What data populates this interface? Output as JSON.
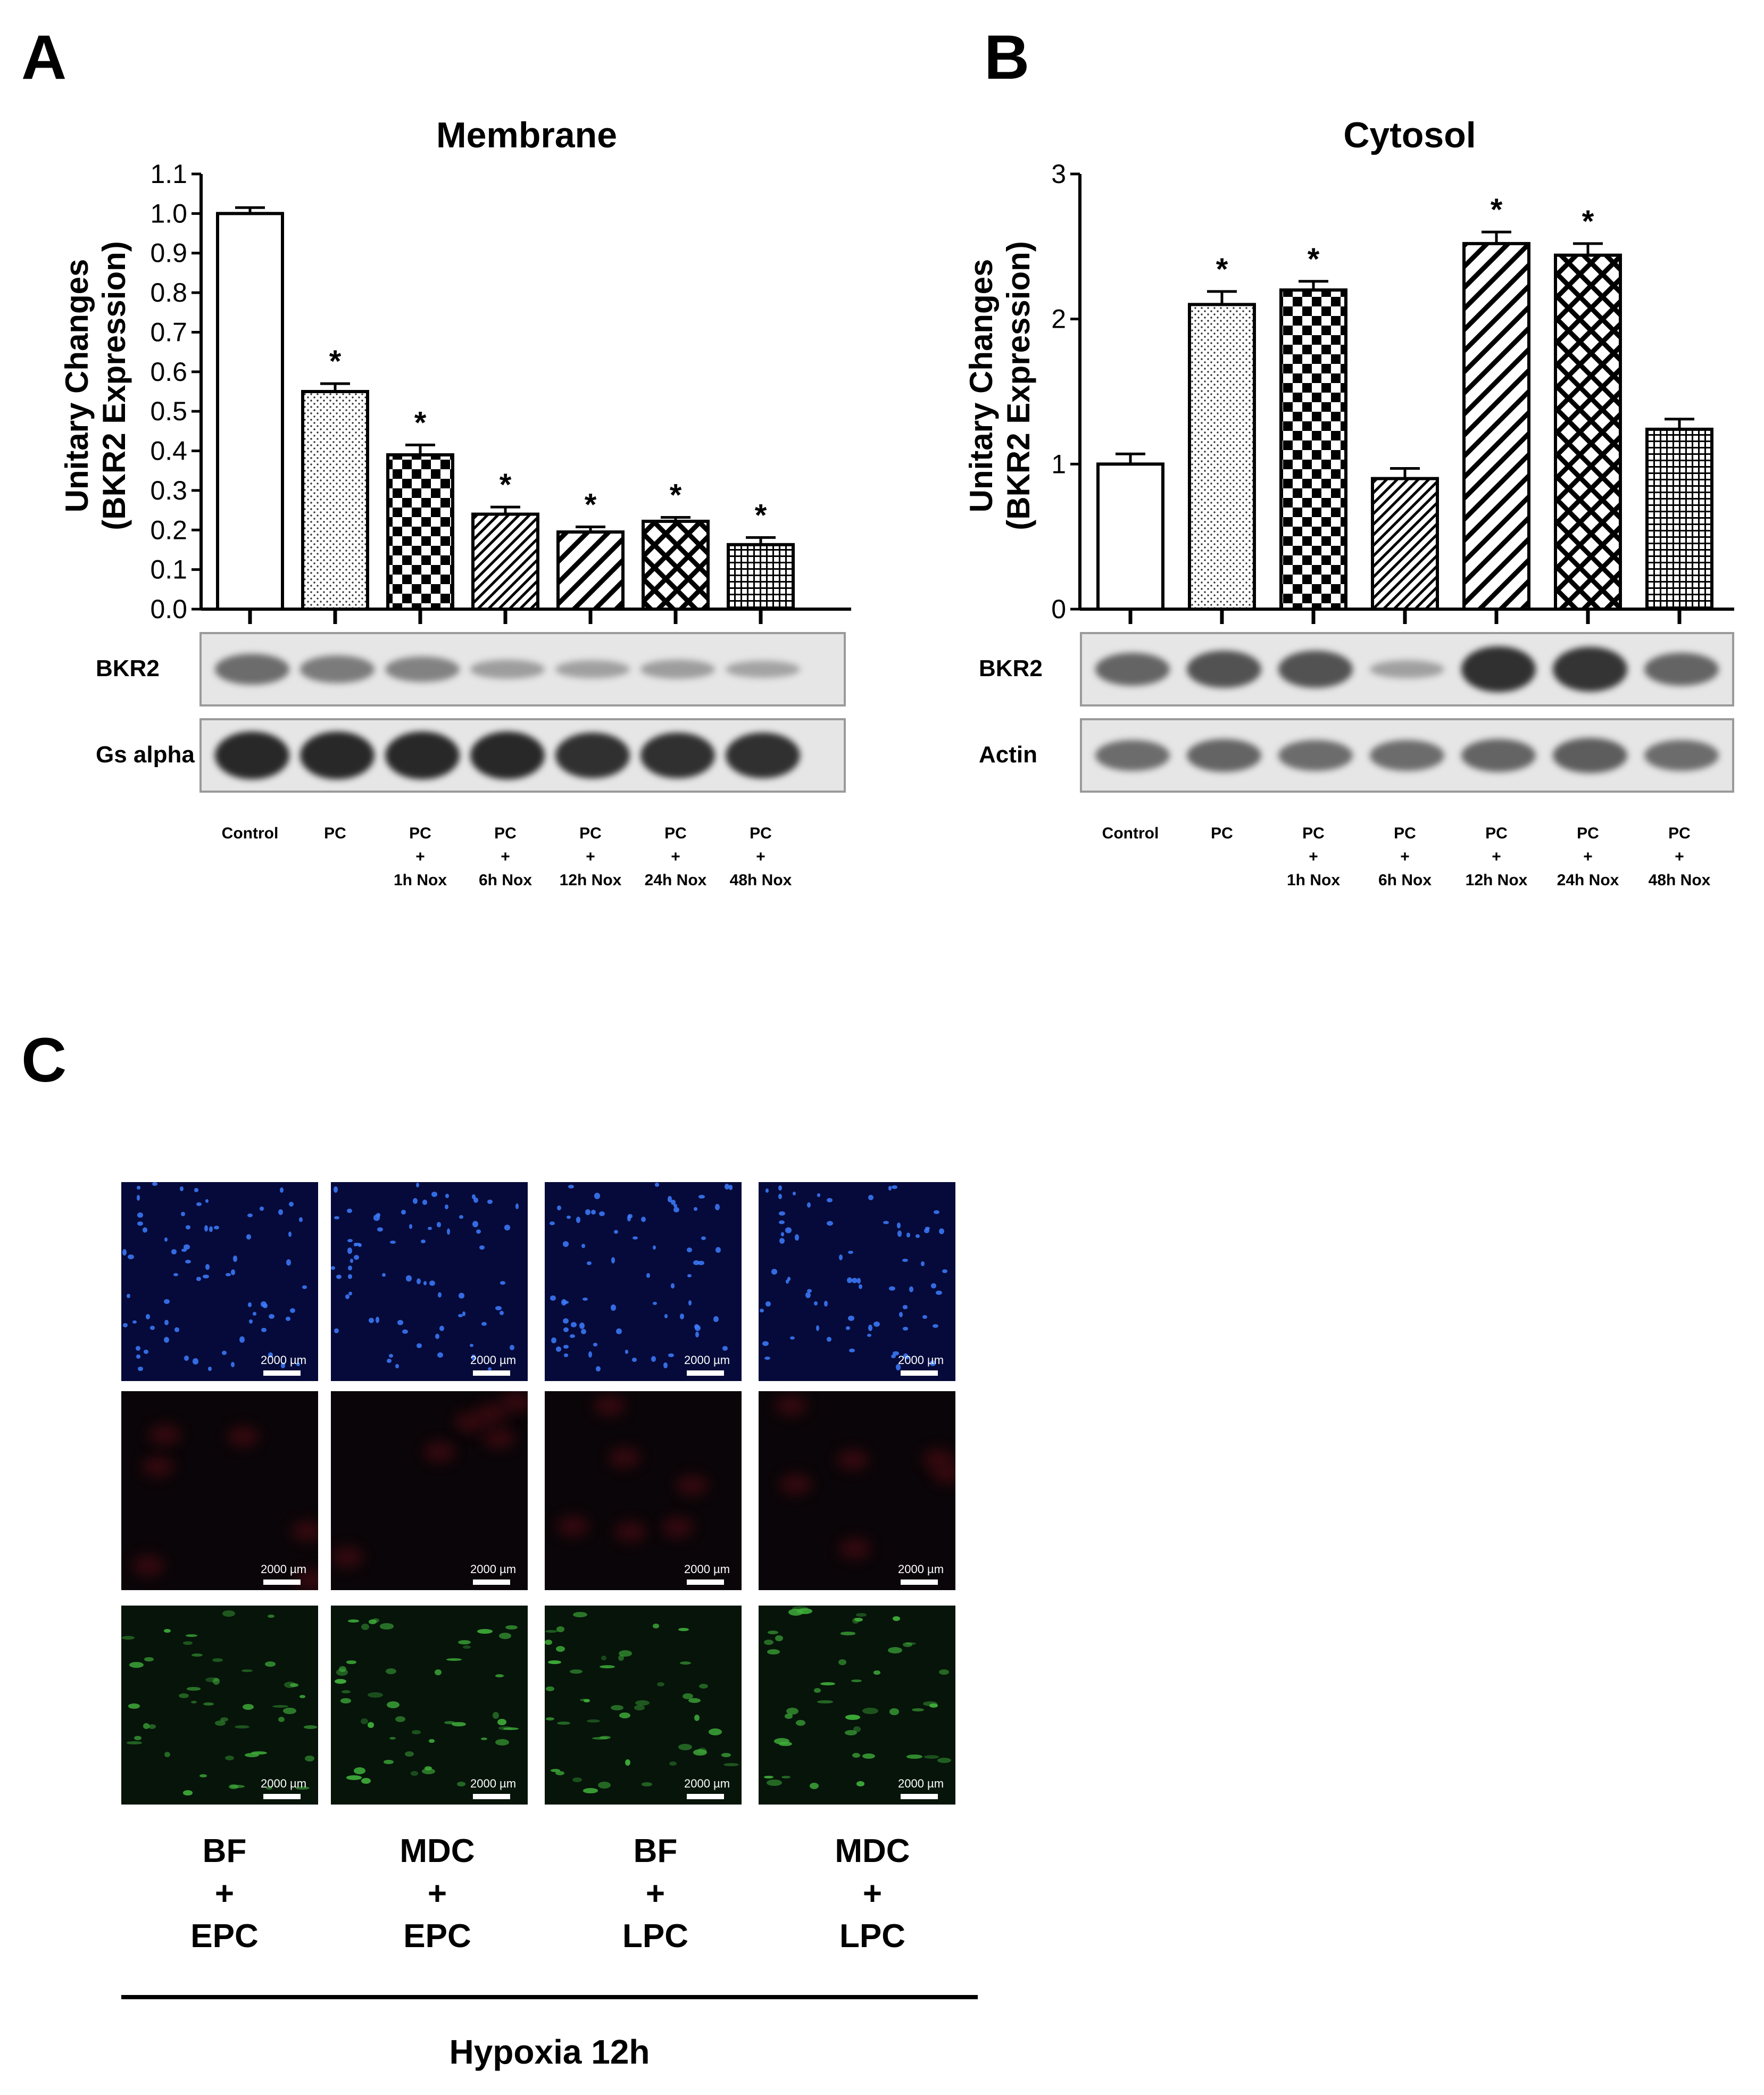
{
  "panels": {
    "a": "A",
    "b": "B",
    "c": "C"
  },
  "chart_data": [
    {
      "type": "bar",
      "title": "Membrane",
      "ylabel_line1": "Unitary Changes",
      "ylabel_line2": "(BKR2 Expression)",
      "ylim": [
        0,
        1.1
      ],
      "yticks": [
        "0.0",
        "0.1",
        "0.2",
        "0.3",
        "0.4",
        "0.5",
        "0.6",
        "0.7",
        "0.8",
        "0.9",
        "1.0",
        "1.1"
      ],
      "categories": [
        "Control",
        "PC",
        "PC + 1h Nox",
        "PC + 6h Nox",
        "PC + 12h Nox",
        "PC + 24h Nox",
        "PC + 48h Nox"
      ],
      "values": [
        1.0,
        0.55,
        0.39,
        0.24,
        0.195,
        0.222,
        0.163
      ],
      "errors": [
        0.015,
        0.02,
        0.025,
        0.018,
        0.013,
        0.01,
        0.018
      ],
      "significance": [
        "",
        "*",
        "*",
        "*",
        "*",
        "*",
        "*"
      ],
      "patterns": [
        "white",
        "dots",
        "checker",
        "diag-fine",
        "diag-wide",
        "crosshatch",
        "grid"
      ],
      "blots": [
        {
          "label": "BKR2",
          "intensity": [
            0.55,
            0.45,
            0.4,
            0.22,
            0.2,
            0.22,
            0.18
          ]
        },
        {
          "label": "Gs alpha",
          "intensity": [
            1,
            1,
            1,
            1,
            0.95,
            0.95,
            0.95
          ]
        }
      ],
      "conditions": [
        [
          "Control"
        ],
        [
          "PC"
        ],
        [
          "PC",
          "+",
          "1h Nox"
        ],
        [
          "PC",
          "+",
          "6h Nox"
        ],
        [
          "PC",
          "+",
          "12h Nox"
        ],
        [
          "PC",
          "+",
          "24h Nox"
        ],
        [
          "PC",
          "+",
          "48h Nox"
        ]
      ]
    },
    {
      "type": "bar",
      "title": "Cytosol",
      "ylabel_line1": "Unitary Changes",
      "ylabel_line2": "(BKR2 Expression)",
      "ylim": [
        0,
        3
      ],
      "yticks": [
        "0",
        "1",
        "2",
        "3"
      ],
      "categories": [
        "Control",
        "PC",
        "PC + 1h Nox",
        "PC + 6h Nox",
        "PC + 12h Nox",
        "PC + 24h Nox",
        "PC + 48h Nox"
      ],
      "values": [
        1.0,
        2.1,
        2.2,
        0.9,
        2.52,
        2.44,
        1.24
      ],
      "errors": [
        0.07,
        0.09,
        0.06,
        0.07,
        0.08,
        0.08,
        0.07
      ],
      "significance": [
        "",
        "*",
        "*",
        "",
        "*",
        "*",
        ""
      ],
      "patterns": [
        "white",
        "dots",
        "checker",
        "diag-fine",
        "diag-wide",
        "crosshatch",
        "grid"
      ],
      "blots": [
        {
          "label": "BKR2",
          "intensity": [
            0.6,
            0.72,
            0.72,
            0.2,
            0.95,
            0.92,
            0.6
          ]
        },
        {
          "label": "Actin",
          "intensity": [
            0.55,
            0.6,
            0.55,
            0.55,
            0.6,
            0.65,
            0.55
          ]
        }
      ],
      "conditions": [
        [
          "Control"
        ],
        [
          "PC"
        ],
        [
          "PC",
          "+",
          "1h Nox"
        ],
        [
          "PC",
          "+",
          "6h Nox"
        ],
        [
          "PC",
          "+",
          "12h Nox"
        ],
        [
          "PC",
          "+",
          "24h Nox"
        ],
        [
          "PC",
          "+",
          "48h Nox"
        ]
      ]
    }
  ],
  "microscopy": {
    "scale_label": "2000 µm",
    "rows": [
      "blue",
      "red",
      "green"
    ],
    "columns": [
      {
        "line1": "BF",
        "line2": "+",
        "line3": "EPC"
      },
      {
        "line1": "MDC",
        "line2": "+",
        "line3": "EPC"
      },
      {
        "line1": "BF",
        "line2": "+",
        "line3": "LPC"
      },
      {
        "line1": "MDC",
        "line2": "+",
        "line3": "LPC"
      }
    ],
    "footer": "Hypoxia 12h"
  }
}
